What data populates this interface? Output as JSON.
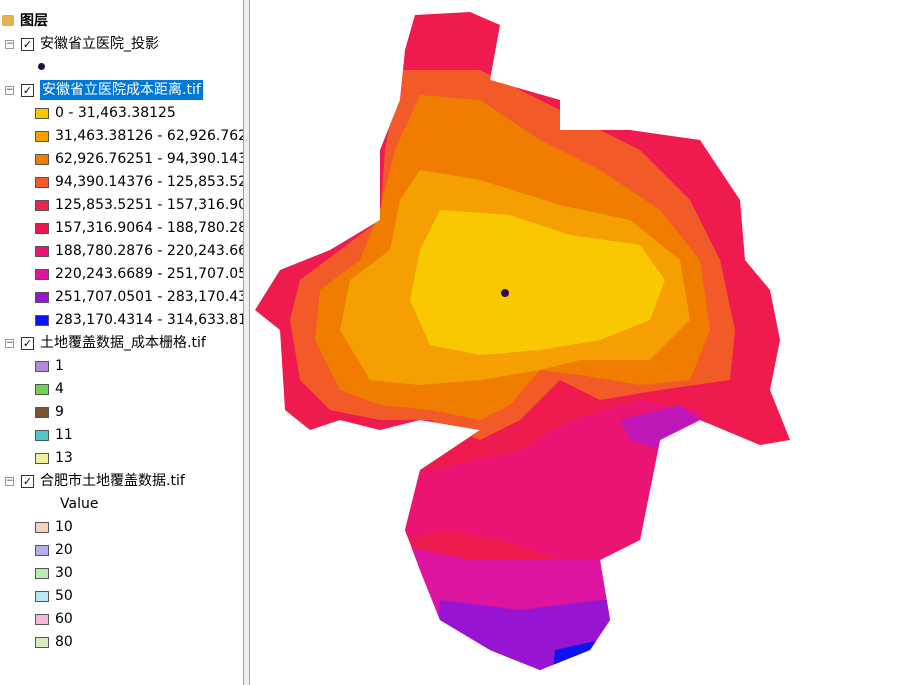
{
  "toc": {
    "title": "图层",
    "layers": [
      {
        "name": "安徽省立医院_投影",
        "point_color": "#2a0a3a"
      },
      {
        "name": "安徽省立医院成本距离.tif",
        "selected": true,
        "legend": [
          {
            "label": "0 - 31,463.38125",
            "color": "#fac800"
          },
          {
            "label": "31,463.38126 - 62,926.762",
            "color": "#f5a000"
          },
          {
            "label": "62,926.76251 - 94,390.143",
            "color": "#f07d00"
          },
          {
            "label": "94,390.14376 - 125,853.52",
            "color": "#f25a28"
          },
          {
            "label": "125,853.5251 - 157,316.90",
            "color": "#e6284b"
          },
          {
            "label": "157,316.9064 - 188,780.28",
            "color": "#f01450"
          },
          {
            "label": "188,780.2876 - 220,243.66",
            "color": "#eb1473"
          },
          {
            "label": "220,243.6689 - 251,707.05",
            "color": "#dc14a0"
          },
          {
            "label": "251,707.0501 - 283,170.43",
            "color": "#9614d2"
          },
          {
            "label": "283,170.4314 - 314,633.81",
            "color": "#0a14f0"
          }
        ]
      },
      {
        "name": "土地覆盖数据_成本栅格.tif",
        "legend": [
          {
            "label": "1",
            "color": "#b08ad8"
          },
          {
            "label": "4",
            "color": "#70d050"
          },
          {
            "label": "9",
            "color": "#7a5530"
          },
          {
            "label": "11",
            "color": "#4cc8c8"
          },
          {
            "label": "13",
            "color": "#eef0a0"
          }
        ]
      },
      {
        "name": "合肥市土地覆盖数据.tif",
        "field": "Value",
        "legend": [
          {
            "label": "10",
            "color": "#f8d0c0"
          },
          {
            "label": "20",
            "color": "#b0b0ec"
          },
          {
            "label": "30",
            "color": "#b8ecb0"
          },
          {
            "label": "50",
            "color": "#b8e8f4"
          },
          {
            "label": "60",
            "color": "#f4b8d8"
          },
          {
            "label": "80",
            "color": "#d8ecc0"
          }
        ]
      }
    ]
  }
}
